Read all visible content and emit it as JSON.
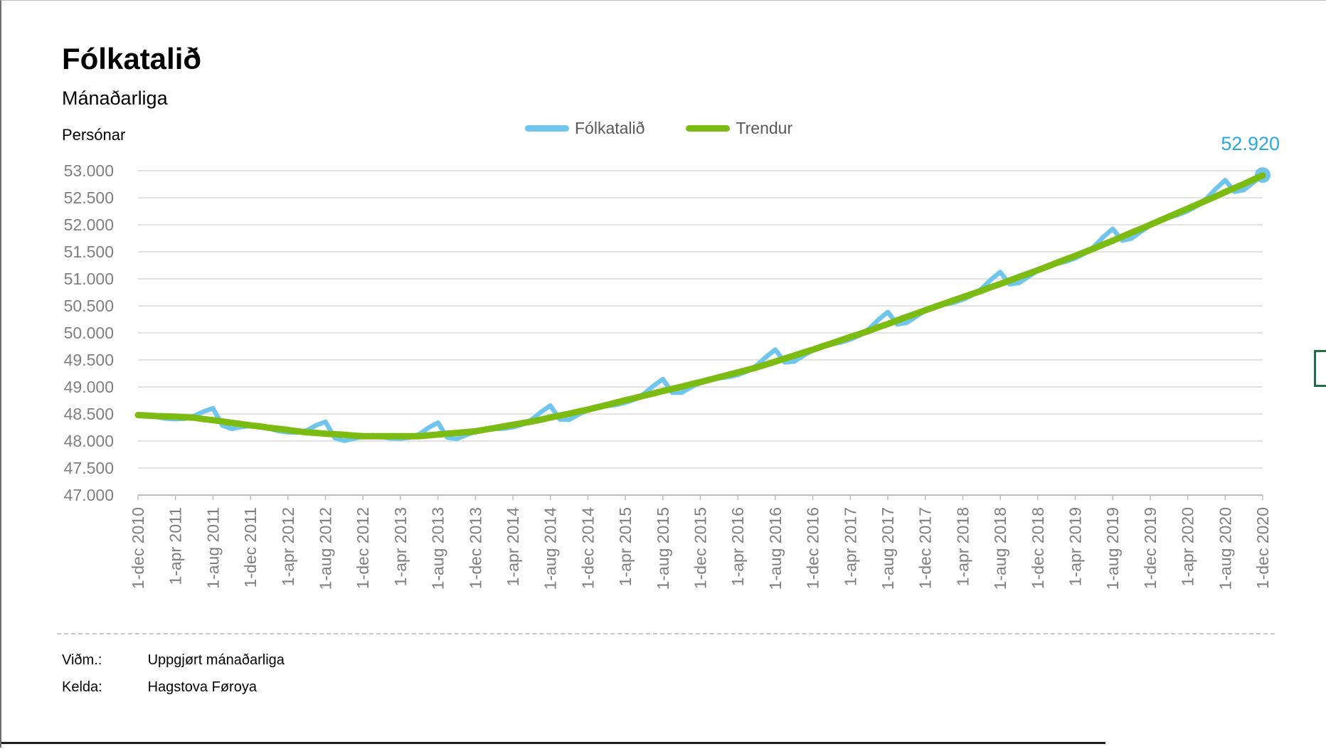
{
  "header": {
    "title": "Fólkatalið",
    "subtitle": "Mánaðarliga"
  },
  "footer": {
    "rows": [
      {
        "label": "Viðm.:",
        "value": "Uppgjørt mánaðarliga"
      },
      {
        "label": "Kelda:",
        "value": "Hagstova Føroya"
      }
    ]
  },
  "colors": {
    "series_blue": "#70c5ec",
    "series_green": "#7cbb12",
    "end_label_blue": "#27aae1",
    "gridline": "#d9d9d9",
    "axis_line": "#bdbdbd",
    "tick_text": "#7f7f7f",
    "legend_text": "#595959",
    "bracket_green": "#1e7145"
  },
  "chart_data": {
    "type": "line",
    "title": "Fólkatalið",
    "subtitle": "Mánaðarliga",
    "ylabel": "Persónar",
    "x_unit": "month",
    "x_start": "1-dec 2010",
    "x_end": "1-dec 2020",
    "x_tick_every_months": 4,
    "x_tick_labels": [
      "1-dec 2010",
      "1-apr 2011",
      "1-aug 2011",
      "1-dec 2011",
      "1-apr 2012",
      "1-aug 2012",
      "1-dec 2012",
      "1-apr 2013",
      "1-aug 2013",
      "1-dec 2013",
      "1-apr 2014",
      "1-aug 2014",
      "1-dec 2014",
      "1-apr 2015",
      "1-aug 2015",
      "1-dec 2015",
      "1-apr 2016",
      "1-aug 2016",
      "1-dec 2016",
      "1-apr 2017",
      "1-aug 2017",
      "1-dec 2017",
      "1-apr 2018",
      "1-aug 2018",
      "1-dec 2018",
      "1-apr 2019",
      "1-aug 2019",
      "1-dec 2019",
      "1-apr 2020",
      "1-aug 2020",
      "1-dec 2020"
    ],
    "ylim": [
      47000,
      53000
    ],
    "y_tick_labels": [
      "53.000",
      "52.500",
      "52.000",
      "51.500",
      "51.000",
      "50.500",
      "50.000",
      "49.500",
      "49.000",
      "48.500",
      "48.000",
      "47.500",
      "47.000"
    ],
    "grid": "horizontal",
    "legend_position": "top-center",
    "series": [
      {
        "name": "Fólkatalið",
        "color": "#70c5ec",
        "values": [
          48470,
          48485,
          48445,
          48415,
          48405,
          48415,
          48465,
          48545,
          48605,
          48290,
          48225,
          48260,
          48280,
          48285,
          48230,
          48185,
          48160,
          48155,
          48195,
          48290,
          48355,
          48055,
          48005,
          48045,
          48080,
          48105,
          48075,
          48050,
          48045,
          48065,
          48125,
          48245,
          48340,
          48065,
          48040,
          48110,
          48170,
          48225,
          48225,
          48230,
          48255,
          48305,
          48395,
          48535,
          48655,
          48400,
          48395,
          48490,
          48570,
          48640,
          48650,
          48670,
          48710,
          48770,
          48875,
          49020,
          49145,
          48895,
          48895,
          48995,
          49080,
          49150,
          49165,
          49185,
          49225,
          49290,
          49395,
          49555,
          49690,
          49455,
          49470,
          49580,
          49680,
          49765,
          49790,
          49825,
          49880,
          49955,
          50075,
          50245,
          50385,
          50160,
          50185,
          50300,
          50410,
          50495,
          50525,
          50560,
          50615,
          50695,
          50815,
          50985,
          51125,
          50900,
          50925,
          51040,
          51150,
          51240,
          51280,
          51320,
          51380,
          51470,
          51595,
          51775,
          51925,
          51710,
          51745,
          51870,
          51990,
          52090,
          52135,
          52185,
          52255,
          52350,
          52485,
          52665,
          52825,
          52610,
          52645,
          52780,
          52920
        ]
      },
      {
        "name": "Trendur",
        "color": "#7cbb12",
        "values": [
          48480,
          48470,
          48460,
          48455,
          48450,
          48440,
          48430,
          48405,
          48385,
          48360,
          48335,
          48315,
          48290,
          48270,
          48245,
          48225,
          48205,
          48180,
          48160,
          48150,
          48135,
          48125,
          48115,
          48100,
          48090,
          48090,
          48090,
          48090,
          48090,
          48090,
          48090,
          48105,
          48120,
          48135,
          48150,
          48165,
          48180,
          48210,
          48240,
          48270,
          48300,
          48330,
          48360,
          48395,
          48435,
          48470,
          48505,
          48545,
          48580,
          48625,
          48665,
          48710,
          48755,
          48795,
          48840,
          48880,
          48925,
          48965,
          49005,
          49050,
          49090,
          49135,
          49180,
          49225,
          49270,
          49315,
          49360,
          49415,
          49470,
          49525,
          49580,
          49635,
          49690,
          49750,
          49805,
          49865,
          49925,
          49980,
          50040,
          50105,
          50165,
          50230,
          50295,
          50355,
          50420,
          50480,
          50540,
          50600,
          50660,
          50720,
          50780,
          50845,
          50905,
          50970,
          51035,
          51095,
          51160,
          51225,
          51295,
          51360,
          51425,
          51495,
          51560,
          51635,
          51705,
          51780,
          51855,
          51925,
          52000,
          52075,
          52150,
          52225,
          52300,
          52375,
          52450,
          52525,
          52605,
          52680,
          52755,
          52835,
          52910
        ]
      }
    ],
    "end_point": {
      "series": "Fólkatalið",
      "value": 52920,
      "label": "52.920"
    }
  }
}
